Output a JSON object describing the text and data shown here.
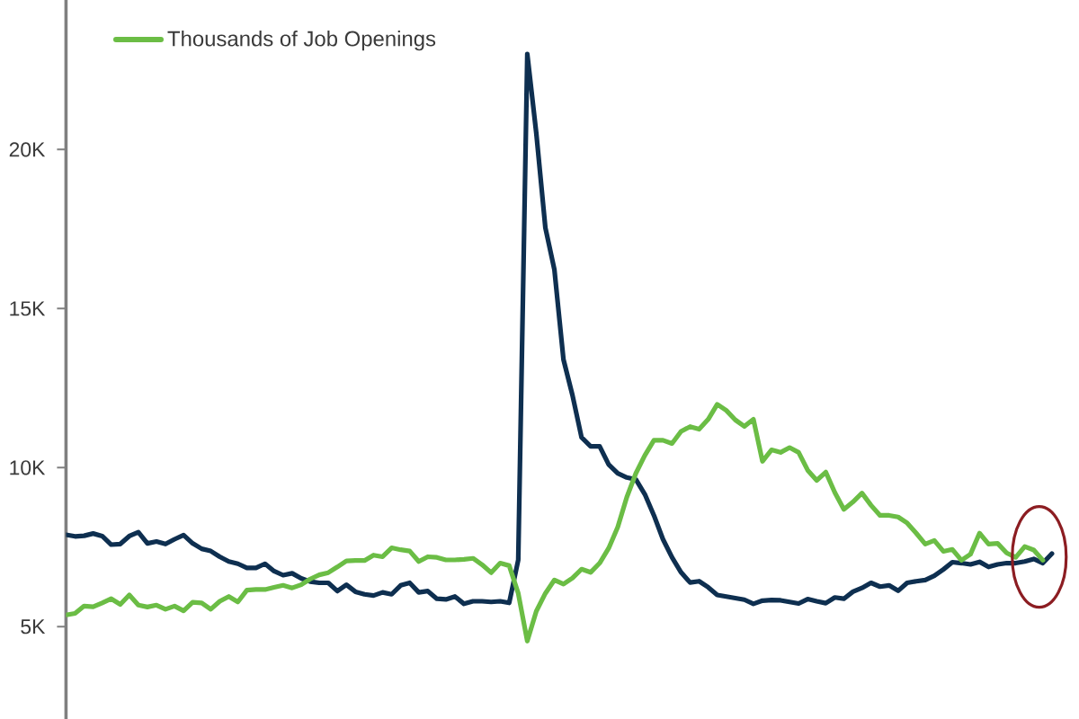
{
  "chart_data": {
    "type": "line",
    "categories": [
      null,
      null,
      null,
      null,
      null,
      null,
      null,
      null,
      null,
      null,
      null,
      null,
      null,
      null,
      null,
      null,
      null,
      null,
      null,
      null,
      null,
      null,
      null,
      null,
      null,
      null,
      null,
      null,
      null,
      null,
      null,
      null,
      null,
      null,
      null,
      null,
      null,
      null,
      null,
      null,
      null,
      null,
      null,
      null,
      null,
      null,
      null,
      null,
      null,
      null,
      null,
      null,
      null,
      null,
      null,
      null,
      null,
      null,
      null,
      null,
      null,
      null,
      null,
      null,
      null,
      null,
      null,
      null,
      null,
      null,
      null,
      null,
      null,
      null,
      null,
      null,
      null,
      null,
      null,
      null,
      null,
      null,
      null,
      null,
      null,
      null,
      null,
      null,
      null,
      null,
      null,
      null,
      null,
      null,
      null,
      null,
      null,
      null,
      null,
      null,
      null,
      null,
      null,
      null,
      null,
      null,
      null,
      null,
      null,
      null
    ],
    "series": [
      {
        "color": "#0e2f50",
        "values": [
          7890,
          7840,
          7860,
          7930,
          7850,
          7580,
          7600,
          7850,
          7970,
          7620,
          7680,
          7600,
          7750,
          7880,
          7620,
          7450,
          7380,
          7200,
          7050,
          6980,
          6850,
          6850,
          6980,
          6750,
          6620,
          6680,
          6520,
          6420,
          6380,
          6380,
          6120,
          6320,
          6100,
          6020,
          5980,
          6080,
          6020,
          6300,
          6380,
          6080,
          6120,
          5880,
          5860,
          5950,
          5720,
          5800,
          5800,
          5780,
          5800,
          5750,
          7100,
          23000,
          20500,
          17540,
          16220,
          13400,
          12270,
          10950,
          10670,
          10670,
          10100,
          9820,
          9690,
          9630,
          9160,
          8500,
          7750,
          7180,
          6710,
          6390,
          6430,
          6240,
          6000,
          5950,
          5900,
          5850,
          5720,
          5820,
          5840,
          5830,
          5780,
          5730,
          5870,
          5800,
          5740,
          5920,
          5880,
          6100,
          6220,
          6380,
          6260,
          6300,
          6130,
          6380,
          6430,
          6470,
          6600,
          6800,
          7030,
          7000,
          6960,
          7040,
          6880,
          6960,
          7000,
          7000,
          7050,
          7130,
          7000,
          7300
        ]
      },
      {
        "name": "Thousands of Job Openings",
        "color": "#6bbd45",
        "values": [
          5370,
          5420,
          5650,
          5630,
          5750,
          5880,
          5700,
          6000,
          5680,
          5620,
          5680,
          5550,
          5650,
          5500,
          5770,
          5750,
          5550,
          5800,
          5950,
          5780,
          6150,
          6170,
          6170,
          6240,
          6300,
          6220,
          6320,
          6500,
          6630,
          6700,
          6880,
          7070,
          7080,
          7080,
          7250,
          7200,
          7480,
          7420,
          7380,
          7050,
          7200,
          7180,
          7100,
          7100,
          7120,
          7150,
          6950,
          6700,
          7000,
          6920,
          6050,
          4550,
          5490,
          6050,
          6470,
          6340,
          6530,
          6810,
          6710,
          7000,
          7470,
          8130,
          9070,
          9820,
          10390,
          10860,
          10860,
          10760,
          11140,
          11290,
          11210,
          11520,
          11990,
          11800,
          11500,
          11300,
          11520,
          10200,
          10560,
          10480,
          10630,
          10480,
          9920,
          9600,
          9860,
          9220,
          8690,
          8920,
          9200,
          8820,
          8500,
          8500,
          8450,
          8260,
          7940,
          7600,
          7710,
          7370,
          7430,
          7090,
          7280,
          7940,
          7600,
          7620,
          7320,
          7180,
          7520,
          7410,
          7090,
          null
        ]
      }
    ],
    "ylim": [
      2100,
      24700
    ],
    "yticks": [
      {
        "value": 5000,
        "label": "5K"
      },
      {
        "value": 10000,
        "label": "10K"
      },
      {
        "value": 15000,
        "label": "15K"
      },
      {
        "value": 20000,
        "label": "20K"
      }
    ],
    "tick_labels": "y",
    "legend": "top left"
  }
}
